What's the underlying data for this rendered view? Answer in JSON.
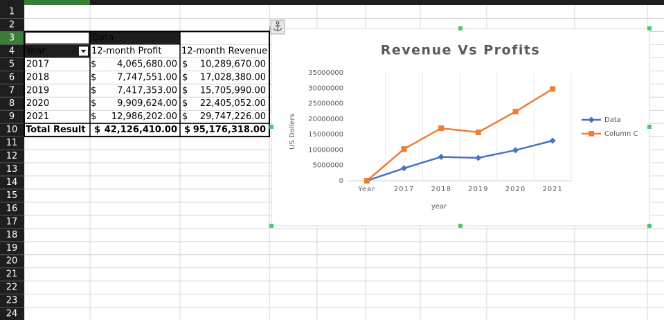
{
  "sheet": {
    "row_headers": [
      1,
      2,
      3,
      4,
      5,
      6,
      7,
      8,
      9,
      10,
      11,
      12,
      13,
      14,
      15,
      16,
      17,
      18,
      19,
      20,
      21,
      22,
      23,
      24
    ],
    "pivot": {
      "data_header": "Data",
      "header": [
        "Year",
        "12-month Profit",
        "12-month Revenue"
      ],
      "rows": [
        [
          "2017",
          "$",
          "4,065,680.00",
          "$",
          "10,289,670.00"
        ],
        [
          "2018",
          "$",
          "7,747,551.00",
          "$",
          "17,028,380.00"
        ],
        [
          "2019",
          "$",
          "7,417,353.00",
          "$",
          "15,705,990.00"
        ],
        [
          "2020",
          "$",
          "9,909,624.00",
          "$",
          "22,405,052.00"
        ],
        [
          "2021",
          "$",
          "12,986,202.00",
          "$",
          "29,747,226.00"
        ]
      ],
      "total": [
        "Total Result",
        "$",
        "42,126,410.00",
        "$",
        "95,176,318.00"
      ]
    }
  },
  "chart_data": {
    "type": "line",
    "title": "Revenue Vs Profits",
    "x_label": "year",
    "y_label": "US Dollers",
    "categories": [
      "Year",
      "2017",
      "2018",
      "2019",
      "2020",
      "2021"
    ],
    "series": [
      {
        "name": "Data",
        "color": "#4472c4",
        "marker": "diamond",
        "values": [
          0,
          4065680,
          7747551,
          7417353,
          9909624,
          12986202
        ]
      },
      {
        "name": "Column C",
        "color": "#ed7d31",
        "marker": "square",
        "values": [
          0,
          10289670,
          17028380,
          15705990,
          22405052,
          29747226
        ]
      }
    ],
    "ylim": [
      0,
      35000000
    ],
    "yticks": [
      0,
      5000000,
      10000000,
      15000000,
      20000000,
      25000000,
      30000000,
      35000000
    ],
    "legend": "right"
  }
}
